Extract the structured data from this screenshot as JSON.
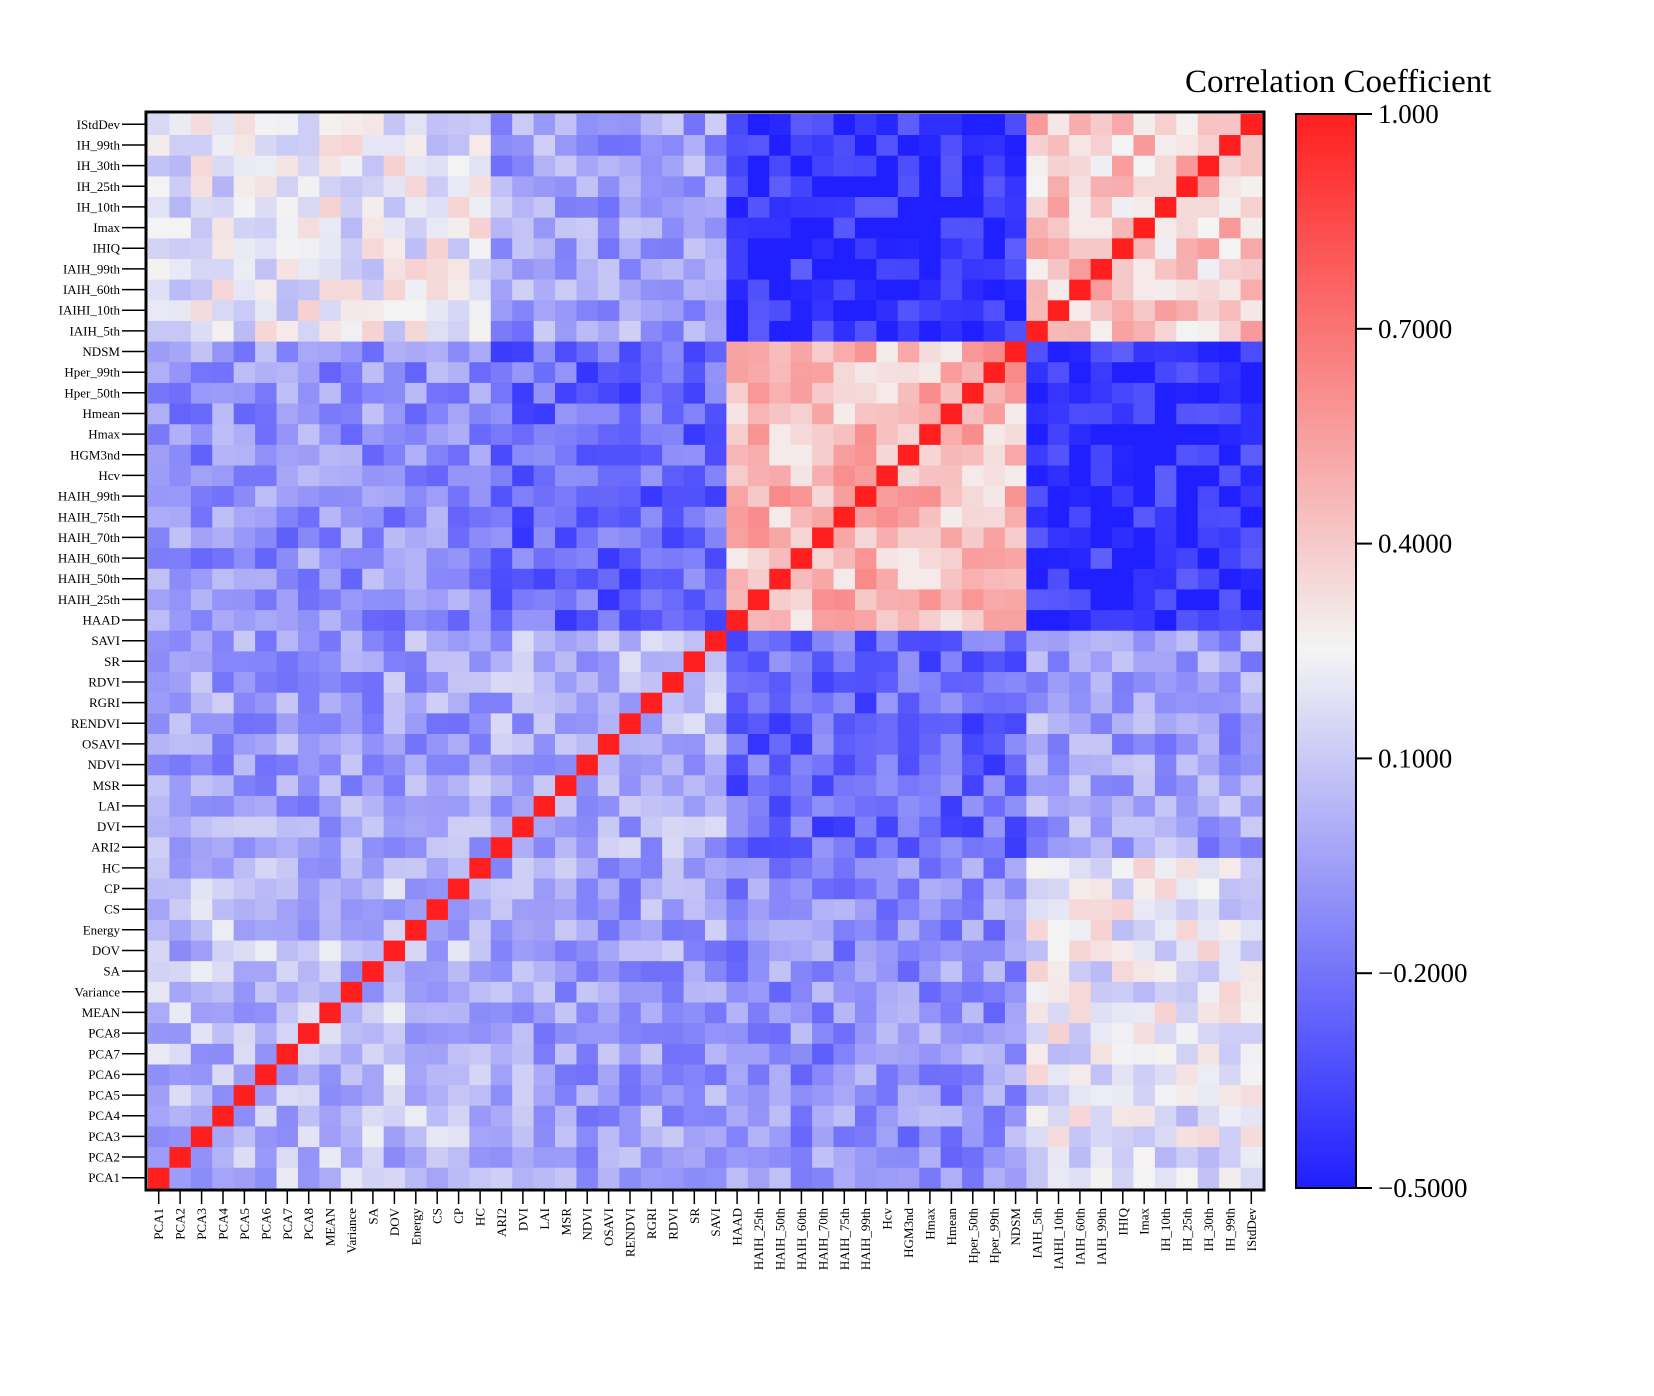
{
  "chart_data": {
    "type": "heatmap",
    "title": "Correlation Coefficient",
    "variables": [
      "PCA1",
      "PCA2",
      "PCA3",
      "PCA4",
      "PCA5",
      "PCA6",
      "PCA7",
      "PCA8",
      "MEAN",
      "Variance",
      "SA",
      "DOV",
      "Energy",
      "CS",
      "CP",
      "HC",
      "ARI2",
      "DVI",
      "LAI",
      "MSR",
      "NDVI",
      "OSAVI",
      "RENDVI",
      "RGRI",
      "RDVI",
      "SR",
      "SAVI",
      "HAAD",
      "HAIH_25th",
      "HAIH_50th",
      "HAIH_60th",
      "HAIH_70th",
      "HAIH_75th",
      "HAIH_99th",
      "Hcv",
      "HGM3nd",
      "Hmax",
      "Hmean",
      "Hper_50th",
      "Hper_99th",
      "NDSM",
      "IAIH_5th",
      "IAIHI_10th",
      "IAIH_60th",
      "IAIH_99th",
      "IHIQ",
      "Imax",
      "IH_10th",
      "IH_25th",
      "IH_30th",
      "IH_99th",
      "IStdDev"
    ],
    "colorbar": {
      "min": -0.5,
      "max": 1.0,
      "ticks": [
        -0.5,
        -0.2,
        0.1,
        0.4,
        0.7,
        1.0
      ],
      "tick_labels": [
        "−0.5000",
        "−0.2000",
        "0.1000",
        "0.4000",
        "0.7000",
        "1.000"
      ],
      "low_color": "#1f1fff",
      "mid_color": "#f4f4f4",
      "high_color": "#ff1f1f"
    },
    "groups": {
      "texture": [
        "PCA1",
        "PCA2",
        "PCA3",
        "PCA4",
        "PCA5",
        "PCA6",
        "PCA7",
        "PCA8",
        "MEAN",
        "Variance",
        "SA",
        "DOV",
        "Energy",
        "CS",
        "CP",
        "HC"
      ],
      "spectral": [
        "ARI2",
        "DVI",
        "LAI",
        "MSR",
        "NDVI",
        "OSAVI",
        "RENDVI",
        "RGRI",
        "RDVI",
        "SR",
        "SAVI"
      ],
      "height": [
        "HAAD",
        "HAIH_25th",
        "HAIH_50th",
        "HAIH_60th",
        "HAIH_70th",
        "HAIH_75th",
        "HAIH_99th",
        "Hcv",
        "HGM3nd",
        "Hmax",
        "Hmean",
        "Hper_50th",
        "Hper_99th",
        "NDSM"
      ],
      "intensity": [
        "IAIH_5th",
        "IAIHI_10th",
        "IAIH_60th",
        "IAIH_99th",
        "IHIQ",
        "Imax",
        "IH_10th",
        "IH_25th",
        "IH_30th",
        "IH_99th",
        "IStdDev"
      ]
    },
    "block_correlation": {
      "texture-texture": 0.05,
      "texture-spectral": -0.05,
      "texture-height": -0.1,
      "texture-intensity": 0.2,
      "spectral-spectral": 0.0,
      "spectral-height": -0.25,
      "spectral-intensity": -0.05,
      "height-height": 0.45,
      "height-intensity": -0.45,
      "intensity-intensity": 0.4
    },
    "diagonal": 1.0,
    "cell_values_legible": false
  }
}
